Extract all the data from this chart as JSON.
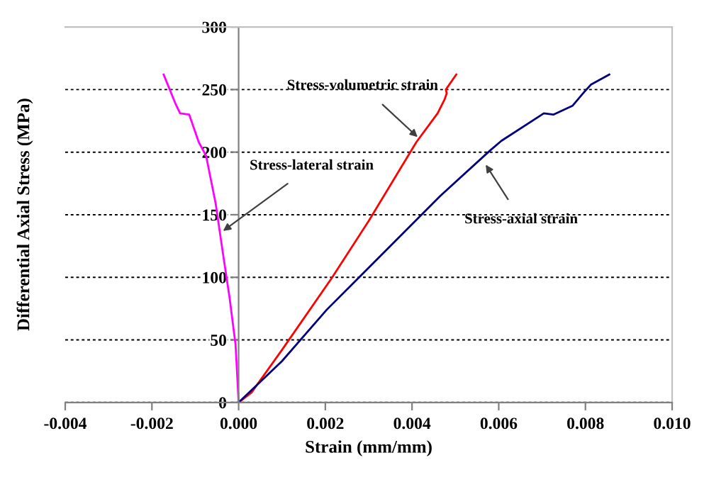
{
  "chart_data": {
    "type": "line",
    "xlabel": "Strain (mm/mm)",
    "ylabel": "Differential Axial Stress (MPa)",
    "xlim": [
      -0.004,
      0.01
    ],
    "xticks": [
      {
        "value": -0.004,
        "label": "-0.004"
      },
      {
        "value": -0.002,
        "label": "-0.002"
      },
      {
        "value": 0,
        "label": "0.000"
      },
      {
        "value": 0.002,
        "label": "0.002"
      },
      {
        "value": 0.004,
        "label": "0.004"
      },
      {
        "value": 0.006,
        "label": "0.006"
      },
      {
        "value": 0.008,
        "label": "0.008"
      },
      {
        "value": 0.01,
        "label": "0.010"
      }
    ],
    "ylim": [
      0,
      300
    ],
    "yticks": [
      0,
      50,
      100,
      150,
      200,
      250,
      300
    ],
    "grid": "y",
    "marker": "none",
    "line_style": "solid",
    "series": [
      {
        "color": "#ff00ff",
        "x": [
          0,
          -7e-05,
          -0.00021,
          -0.00037,
          -0.00053,
          -0.00075,
          -0.00092,
          -0.00114,
          -0.00135,
          -0.00146,
          -0.00173
        ],
        "values": [
          0,
          46,
          84,
          121,
          159,
          197,
          208,
          230,
          231,
          239,
          262
        ]
      },
      {
        "color": "#ff0000",
        "x": [
          0,
          0.0003,
          0.001,
          0.00214,
          0.003,
          0.0041,
          0.00459,
          0.00475,
          0.0048,
          0.00478,
          0.00502
        ],
        "values": [
          0,
          8,
          42,
          99,
          145,
          208,
          231,
          242,
          247,
          250,
          262
        ]
      },
      {
        "color": "#000080",
        "x": [
          0,
          0.001,
          0.00203,
          0.00465,
          0.00579,
          0.00606,
          0.00704,
          0.00726,
          0.0077,
          0.00797,
          0.00813,
          0.00855
        ],
        "values": [
          0,
          33,
          74,
          165,
          201,
          209,
          231,
          230,
          237,
          248,
          254,
          262
        ]
      }
    ],
    "annotations": [
      {
        "text": "Stress-volumetric strain",
        "x": 0.00413,
        "y": 212
      },
      {
        "text": "Stress-lateral strain",
        "x": -0.00036,
        "y": 137
      },
      {
        "text": "Stress-axial strain",
        "x": 0.0057,
        "y": 190
      }
    ]
  }
}
